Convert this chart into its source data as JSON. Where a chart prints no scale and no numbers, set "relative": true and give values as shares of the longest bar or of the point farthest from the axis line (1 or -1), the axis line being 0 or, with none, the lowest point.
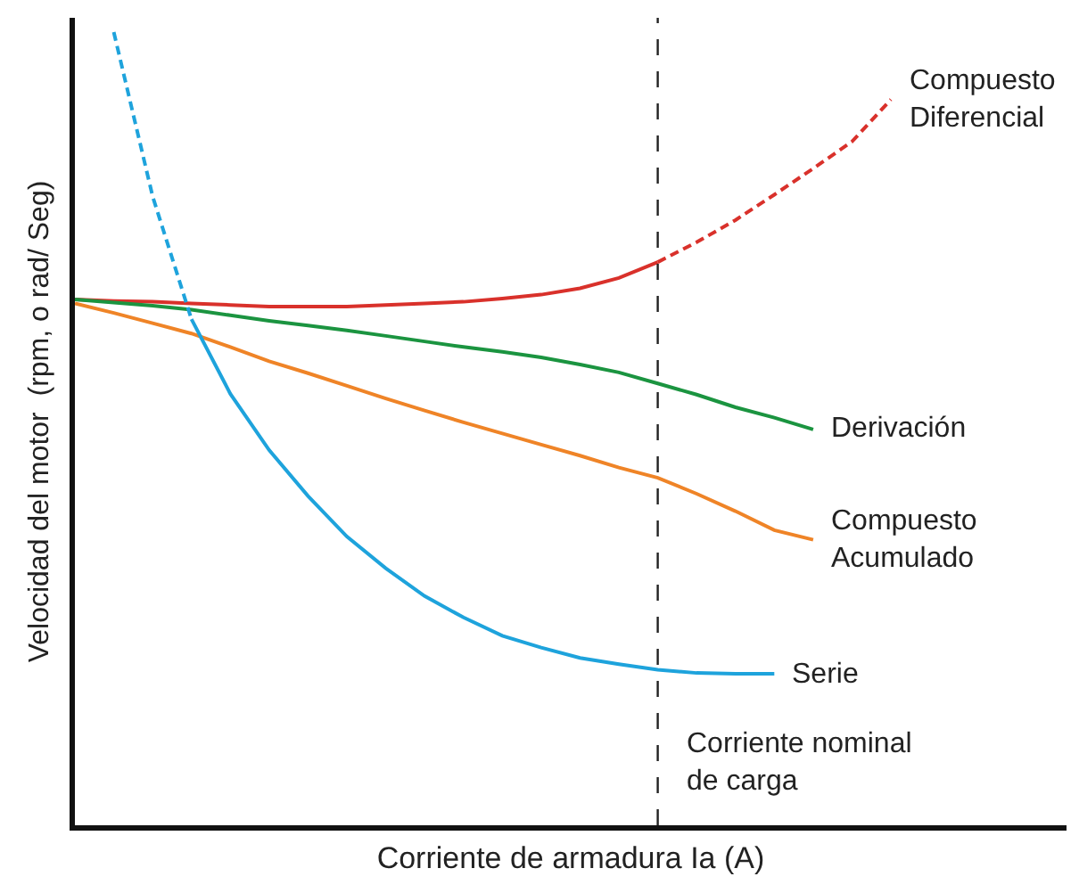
{
  "chart_data": {
    "type": "line",
    "relative": true,
    "xlabel": "Corriente de armadura Ia (A)",
    "ylabel": "Velocidad del motor  (rpm, o rad/ Seg)",
    "legend": false,
    "marker": "none",
    "categories": [
      null,
      null,
      null,
      null,
      null,
      null,
      null,
      null,
      null,
      null,
      null,
      null,
      null,
      null,
      null,
      null,
      null,
      null,
      null,
      null,
      null,
      null
    ],
    "series": [
      {
        "name": "Compuesto\nDiferencial",
        "color": "#d9312b",
        "line_style": "solid",
        "values": [
          0.663,
          0.661,
          0.66,
          0.658,
          0.656,
          0.654,
          0.654,
          0.654,
          0.656,
          0.658,
          0.66,
          0.664,
          0.669,
          0.677,
          0.69,
          0.71,
          null,
          null,
          null,
          null,
          null,
          null
        ]
      },
      {
        "color": "#d9312b",
        "line_style": "dashed",
        "values": [
          null,
          null,
          null,
          null,
          null,
          null,
          null,
          null,
          null,
          null,
          null,
          null,
          null,
          null,
          null,
          0.71,
          0.735,
          0.763,
          0.795,
          0.828,
          0.862,
          0.915
        ]
      },
      {
        "name": "Derivación",
        "color": "#1b9440",
        "line_style": "solid",
        "values": [
          0.663,
          0.659,
          0.655,
          0.65,
          0.643,
          0.636,
          0.63,
          0.624,
          0.617,
          0.61,
          0.603,
          0.597,
          0.59,
          0.581,
          0.571,
          0.557,
          0.543,
          0.527,
          0.514,
          0.499,
          null,
          null
        ]
      },
      {
        "name": "Compuesto\nAcumulado",
        "color": "#ef8427",
        "line_style": "solid",
        "values": [
          0.658,
          0.646,
          0.633,
          0.62,
          0.603,
          0.585,
          0.57,
          0.554,
          0.538,
          0.523,
          0.508,
          0.494,
          0.48,
          0.466,
          0.451,
          0.438,
          0.418,
          0.396,
          0.372,
          0.36,
          null,
          null
        ]
      },
      {
        "color": "#1ea3dc",
        "line_style": "dashed",
        "values": [
          null,
          1.0,
          0.793,
          0.638,
          null,
          null,
          null,
          null,
          null,
          null,
          null,
          null,
          null,
          null,
          null,
          null,
          null,
          null,
          null,
          null,
          null,
          null
        ]
      },
      {
        "name": "Serie",
        "color": "#1ea3dc",
        "line_style": "solid",
        "values": [
          null,
          null,
          null,
          0.638,
          0.544,
          0.473,
          0.415,
          0.364,
          0.324,
          0.289,
          0.262,
          0.239,
          0.224,
          0.211,
          0.203,
          0.196,
          0.192,
          0.191,
          0.191,
          null,
          null,
          null
        ]
      }
    ],
    "annotations": [
      "Corriente nominal\nde carga"
    ]
  }
}
